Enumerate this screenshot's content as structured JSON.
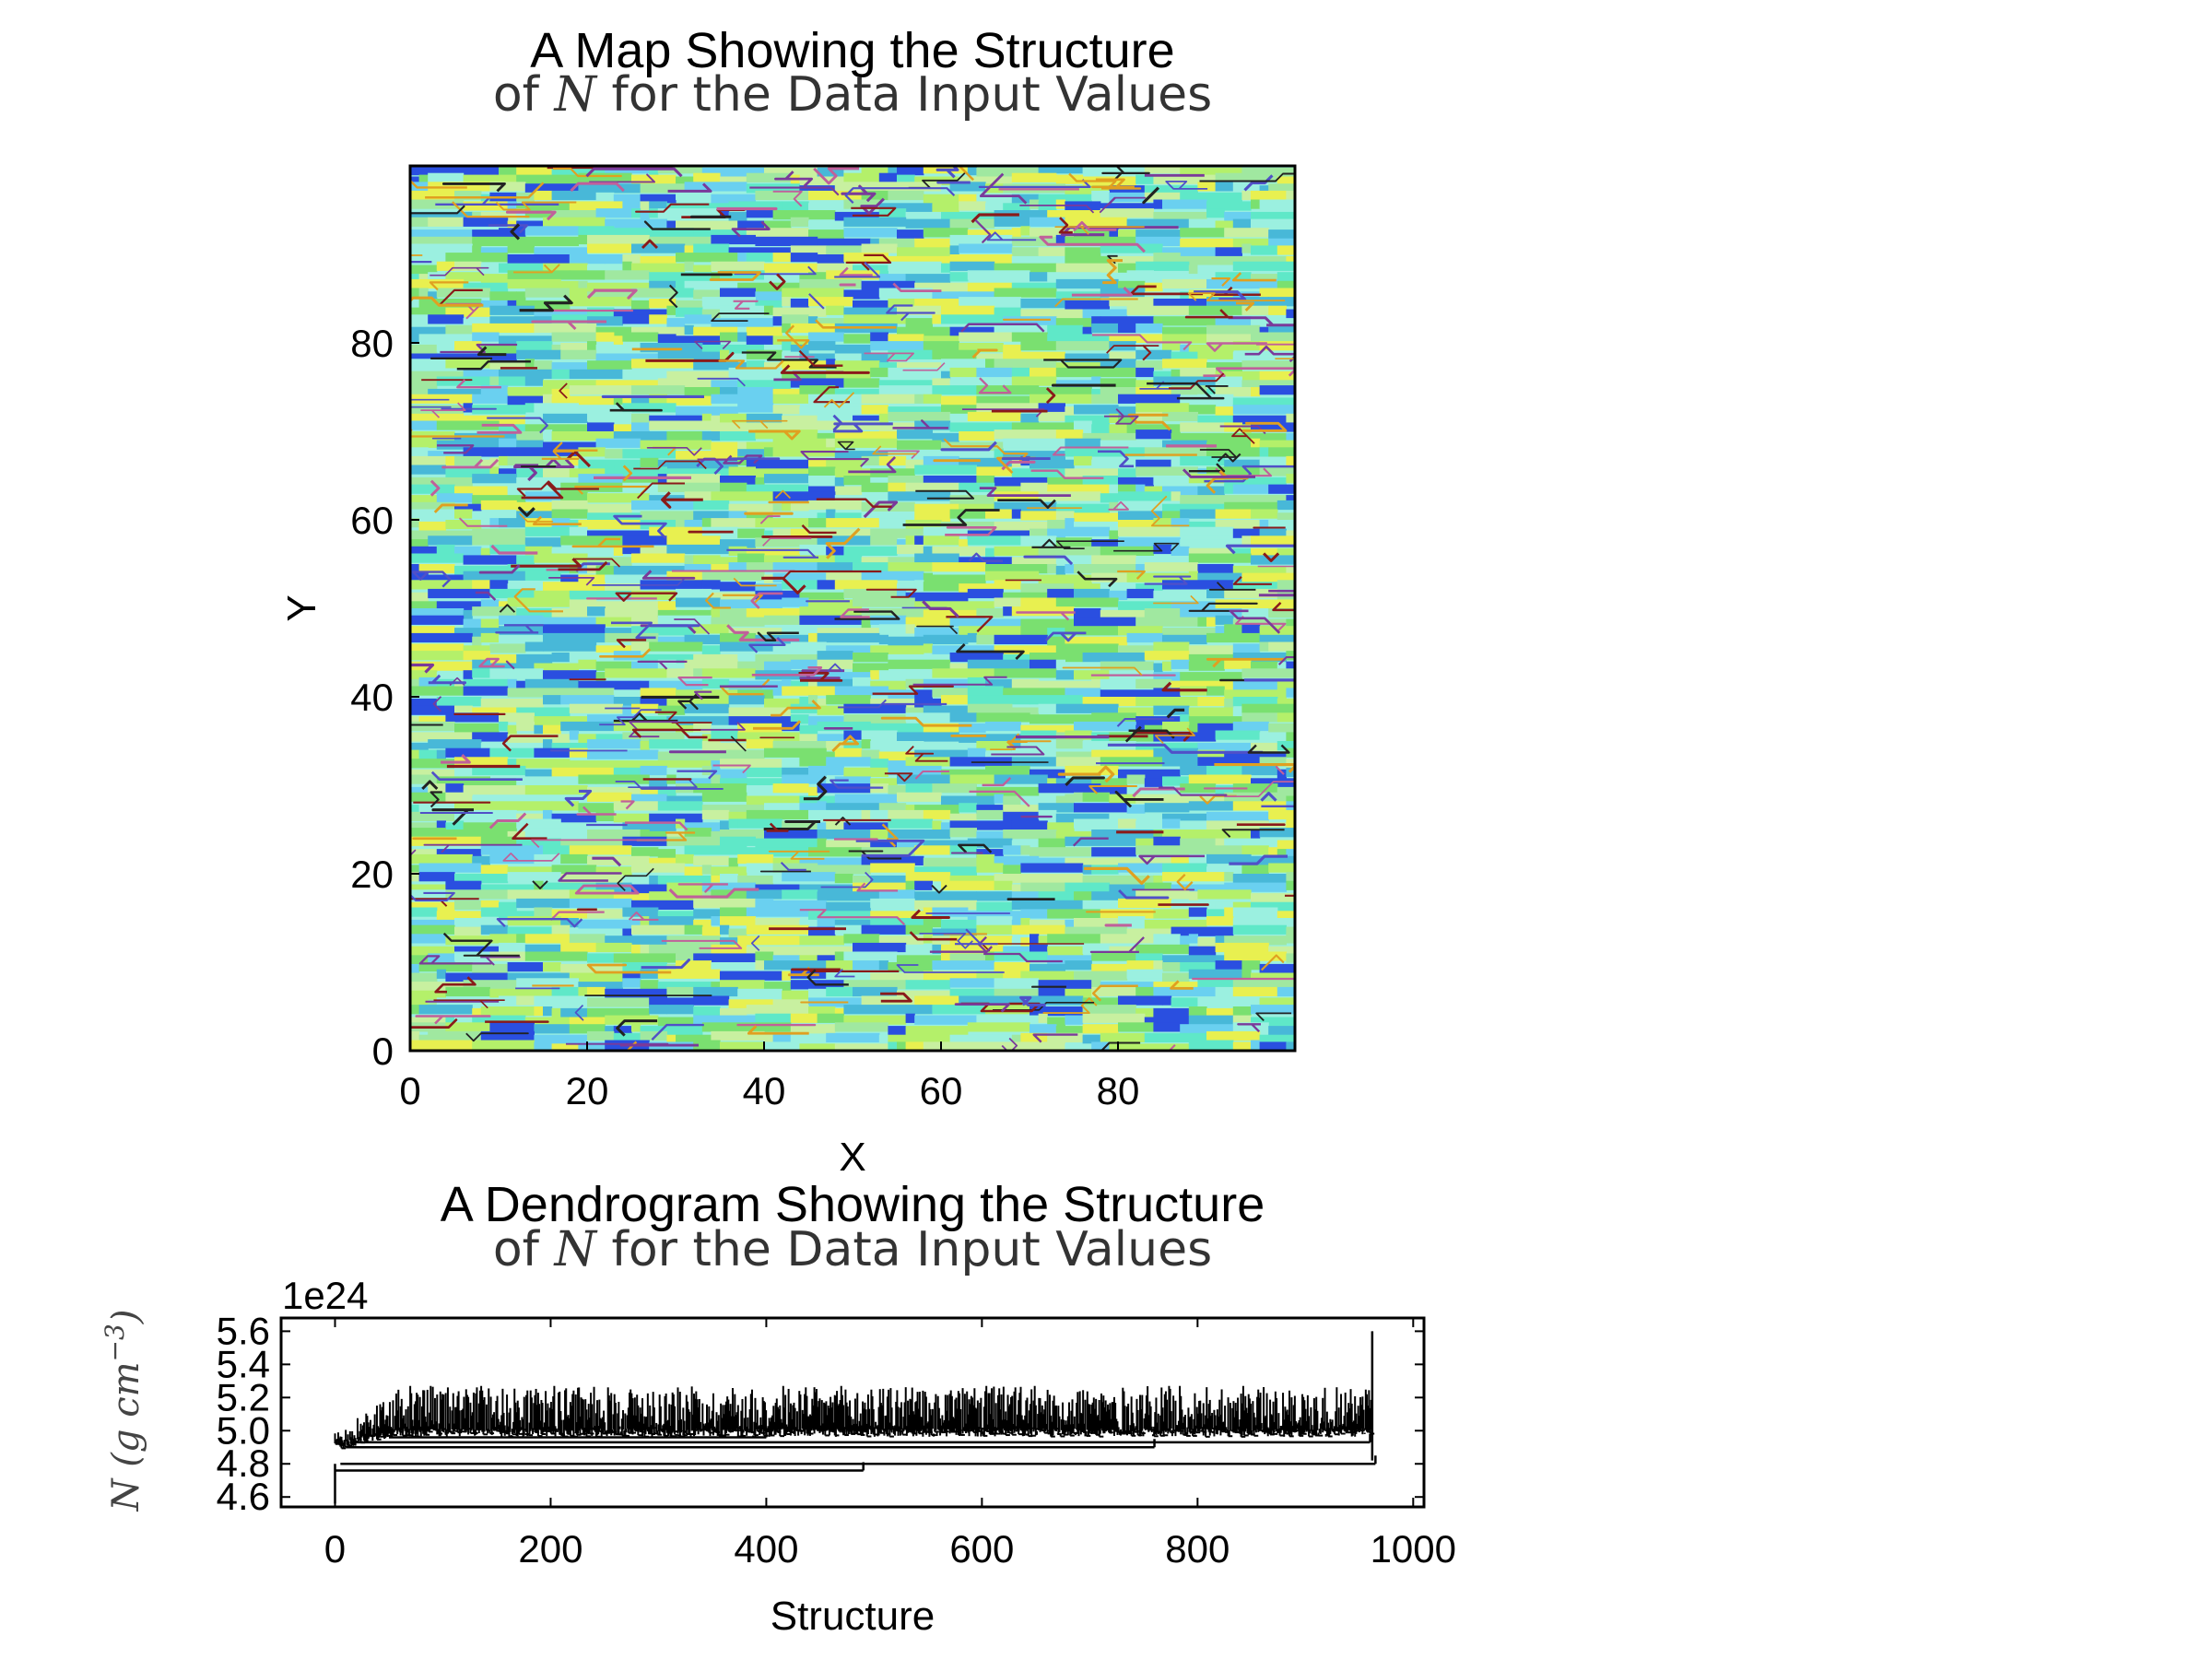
{
  "chart_data": [
    {
      "type": "heatmap",
      "title_line1": "A Map Showing the Structure",
      "title_line2_prefix": "of ",
      "title_line2_symbol": "N",
      "title_line2_suffix": " for the Data Input Values",
      "xlabel": "X",
      "ylabel": "Y",
      "xlim": [
        0,
        100
      ],
      "ylim": [
        0,
        100
      ],
      "xticks": [
        0,
        20,
        40,
        60,
        80
      ],
      "yticks": [
        0,
        20,
        40,
        60,
        80
      ],
      "grid_size": [
        100,
        100
      ],
      "colors": [
        "#9bf0e0",
        "#5fe8c8",
        "#b4f06a",
        "#e8f050",
        "#6ad0f0",
        "#2a4fe0",
        "#a0e8a0",
        "#48b8d8",
        "#c8f0a0",
        "#7ae070"
      ],
      "contour_colors": [
        "#8a1a1a",
        "#222222",
        "#c0609a",
        "#e0a020",
        "#5050c8",
        "#7a3a9a"
      ]
    },
    {
      "type": "line",
      "title_line1": "A Dendrogram Showing the Structure",
      "title_line2_prefix": "of ",
      "title_line2_symbol": "N",
      "title_line2_suffix": " for the Data Input Values",
      "xlabel": "Structure",
      "ylabel": "N (g cm^-3)",
      "ylabel_display": "N (g cm",
      "ylabel_exp": "−3",
      "ylabel_close": ")",
      "offset_text": "1e24",
      "xlim": [
        -50,
        1010
      ],
      "ylim": [
        4.54,
        5.68
      ],
      "xticks": [
        0,
        200,
        400,
        600,
        800,
        1000
      ],
      "yticks": [
        "4.6",
        "4.8",
        "5.0",
        "5.2",
        "5.4",
        "5.6"
      ],
      "trunk": {
        "x": 0,
        "y_bottom": 4.56,
        "y_top": 4.8
      },
      "branches": [
        {
          "x0": 0,
          "x1": 490,
          "y": 4.76
        },
        {
          "x0": 5,
          "x1": 965,
          "y": 4.8
        },
        {
          "x0": 10,
          "x1": 760,
          "y": 4.9
        },
        {
          "x0": 15,
          "x1": 960,
          "y": 4.93
        },
        {
          "x0": 50,
          "x1": 400,
          "y": 4.96
        }
      ],
      "leaf_count": 965,
      "leaf_base_range": [
        4.86,
        5.02
      ],
      "leaf_top_range": [
        4.98,
        5.26
      ],
      "max_leaf": {
        "x": 962,
        "y": 5.6
      },
      "line_color": "#000000"
    }
  ]
}
